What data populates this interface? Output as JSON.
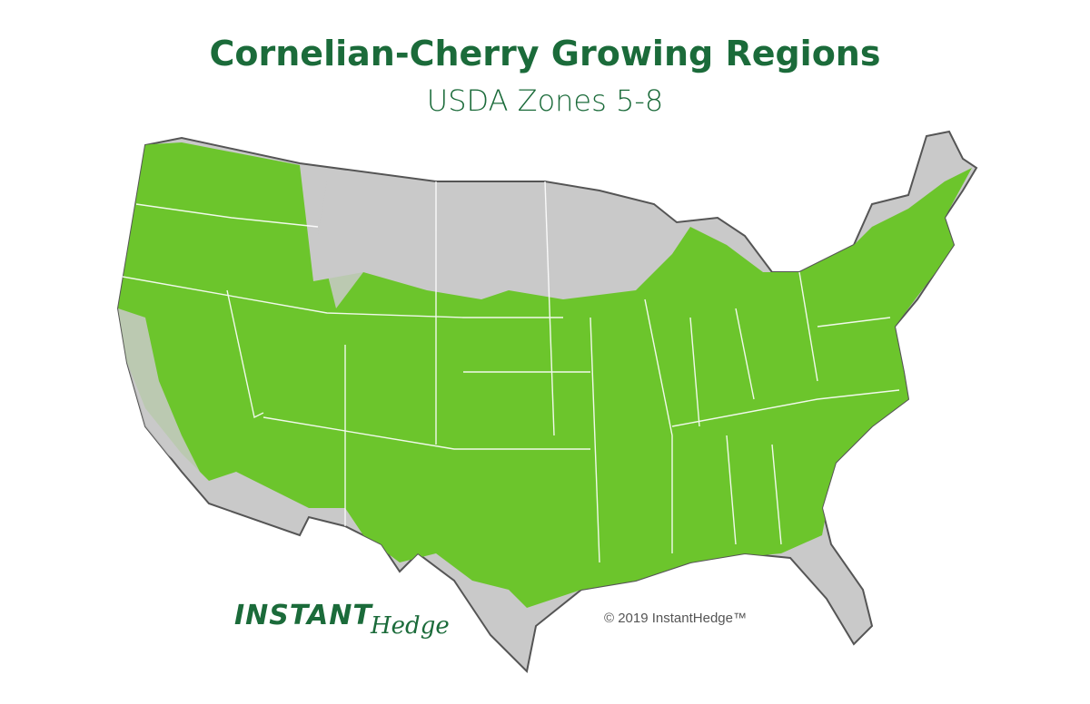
{
  "header": {
    "title": "Cornelian-Cherry Growing Regions",
    "subtitle": "USDA Zones 5-8"
  },
  "logo": {
    "part1": "INSTANT",
    "part2": "Hedge"
  },
  "copyright": "© 2019 InstantHedge™"
}
